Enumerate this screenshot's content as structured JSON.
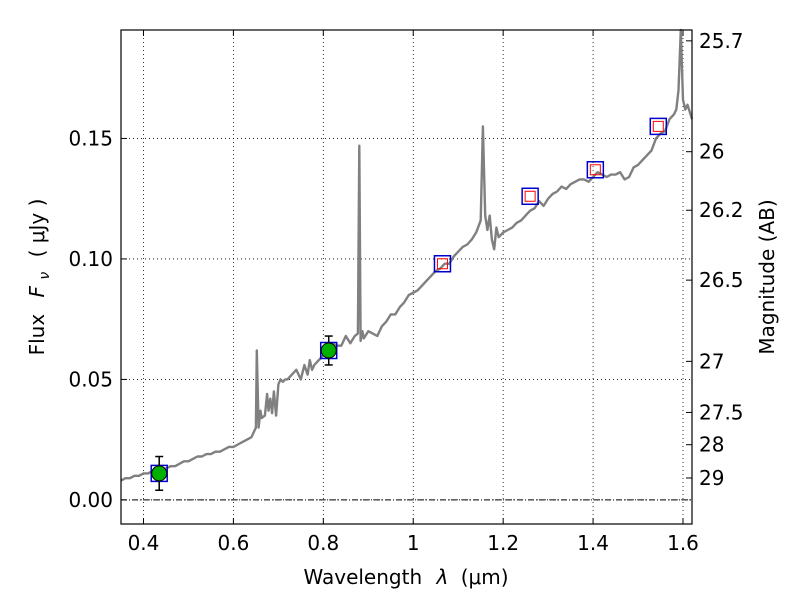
{
  "chart_data": {
    "type": "line",
    "xlabel_text": "Wavelength",
    "xlabel_symbol": "λ",
    "xlabel_unit": "(μm)",
    "ylabel_text": "Flux",
    "ylabel_symbol": "F",
    "ylabel_subscript": "ν",
    "ylabel_unit": "( μJy )",
    "y2label": "Magnitude (AB)",
    "xlim": [
      0.35,
      1.62
    ],
    "ylim": [
      -0.01,
      0.195
    ],
    "x_ticks": [
      0.4,
      0.6,
      0.8,
      1.0,
      1.2,
      1.4,
      1.6
    ],
    "x_tick_labels": [
      "0.4",
      "0.6",
      "0.8",
      "1",
      "1.2",
      "1.4",
      "1.6"
    ],
    "y_ticks": [
      0.0,
      0.05,
      0.1,
      0.15
    ],
    "y_tick_labels": [
      "0.00",
      "0.05",
      "0.10",
      "0.15"
    ],
    "y2_ticks": [
      {
        "label": "25.7",
        "flux": 0.1905
      },
      {
        "label": "26",
        "flux": 0.1445
      },
      {
        "label": "26.2",
        "flux": 0.1202
      },
      {
        "label": "26.5",
        "flux": 0.0912
      },
      {
        "label": "27",
        "flux": 0.0575
      },
      {
        "label": "27.5",
        "flux": 0.0363
      },
      {
        "label": "28",
        "flux": 0.0229
      },
      {
        "label": "29",
        "flux": 0.0091
      }
    ],
    "grid": true,
    "zero_line": true,
    "colors": {
      "spectrum": "#808080",
      "photometry_fill": "#00b000",
      "box_edge": "#0000cc",
      "model_edge": "#ff0000",
      "errorbar": "#000000"
    },
    "spectrum": {
      "x": [
        0.35,
        0.36,
        0.37,
        0.38,
        0.39,
        0.4,
        0.41,
        0.42,
        0.43,
        0.44,
        0.45,
        0.46,
        0.47,
        0.48,
        0.49,
        0.5,
        0.51,
        0.52,
        0.53,
        0.54,
        0.55,
        0.56,
        0.57,
        0.58,
        0.59,
        0.6,
        0.61,
        0.62,
        0.63,
        0.64,
        0.65,
        0.652,
        0.656,
        0.66,
        0.663,
        0.67,
        0.675,
        0.678,
        0.682,
        0.686,
        0.69,
        0.695,
        0.7,
        0.705,
        0.71,
        0.715,
        0.72,
        0.73,
        0.74,
        0.75,
        0.758,
        0.765,
        0.77,
        0.775,
        0.78,
        0.79,
        0.8,
        0.81,
        0.82,
        0.83,
        0.84,
        0.85,
        0.86,
        0.87,
        0.877,
        0.88,
        0.883,
        0.887,
        0.89,
        0.9,
        0.91,
        0.92,
        0.93,
        0.94,
        0.95,
        0.96,
        0.97,
        0.98,
        0.99,
        1.0,
        1.01,
        1.02,
        1.03,
        1.04,
        1.05,
        1.06,
        1.07,
        1.08,
        1.09,
        1.1,
        1.11,
        1.12,
        1.13,
        1.14,
        1.15,
        1.155,
        1.16,
        1.165,
        1.17,
        1.175,
        1.18,
        1.185,
        1.19,
        1.2,
        1.21,
        1.22,
        1.23,
        1.24,
        1.25,
        1.26,
        1.27,
        1.28,
        1.29,
        1.3,
        1.31,
        1.32,
        1.33,
        1.34,
        1.35,
        1.36,
        1.37,
        1.38,
        1.39,
        1.4,
        1.41,
        1.42,
        1.43,
        1.44,
        1.45,
        1.46,
        1.47,
        1.48,
        1.49,
        1.5,
        1.51,
        1.52,
        1.53,
        1.54,
        1.55,
        1.56,
        1.57,
        1.58,
        1.585,
        1.59,
        1.595,
        1.6,
        1.605,
        1.61,
        1.62
      ],
      "y": [
        0.008,
        0.009,
        0.009,
        0.01,
        0.01,
        0.011,
        0.011,
        0.012,
        0.012,
        0.013,
        0.013,
        0.014,
        0.014,
        0.015,
        0.016,
        0.016,
        0.017,
        0.018,
        0.018,
        0.019,
        0.019,
        0.02,
        0.02,
        0.021,
        0.022,
        0.022,
        0.023,
        0.024,
        0.025,
        0.026,
        0.03,
        0.062,
        0.03,
        0.037,
        0.034,
        0.035,
        0.044,
        0.037,
        0.042,
        0.036,
        0.045,
        0.035,
        0.048,
        0.05,
        0.049,
        0.05,
        0.05,
        0.052,
        0.054,
        0.05,
        0.056,
        0.052,
        0.058,
        0.054,
        0.056,
        0.058,
        0.06,
        0.062,
        0.065,
        0.064,
        0.064,
        0.068,
        0.065,
        0.068,
        0.069,
        0.147,
        0.066,
        0.07,
        0.067,
        0.07,
        0.069,
        0.068,
        0.072,
        0.074,
        0.077,
        0.077,
        0.08,
        0.082,
        0.085,
        0.086,
        0.087,
        0.089,
        0.091,
        0.093,
        0.095,
        0.096,
        0.098,
        0.098,
        0.101,
        0.103,
        0.105,
        0.106,
        0.108,
        0.111,
        0.116,
        0.155,
        0.118,
        0.112,
        0.118,
        0.108,
        0.104,
        0.113,
        0.109,
        0.111,
        0.112,
        0.113,
        0.115,
        0.116,
        0.118,
        0.12,
        0.121,
        0.124,
        0.122,
        0.125,
        0.127,
        0.128,
        0.13,
        0.129,
        0.131,
        0.132,
        0.133,
        0.133,
        0.132,
        0.134,
        0.136,
        0.135,
        0.134,
        0.135,
        0.135,
        0.136,
        0.133,
        0.134,
        0.138,
        0.139,
        0.141,
        0.143,
        0.145,
        0.15,
        0.152,
        0.153,
        0.158,
        0.16,
        0.162,
        0.17,
        0.195,
        0.166,
        0.162,
        0.164,
        0.158
      ]
    },
    "photometry": {
      "x": [
        0.435,
        0.812
      ],
      "y": [
        0.011,
        0.062
      ],
      "yerr": [
        0.007,
        0.006
      ]
    },
    "model_points": {
      "x": [
        0.435,
        0.812,
        1.065,
        1.26,
        1.405,
        1.545
      ],
      "y": [
        0.011,
        0.062,
        0.098,
        0.126,
        0.137,
        0.155
      ]
    }
  }
}
